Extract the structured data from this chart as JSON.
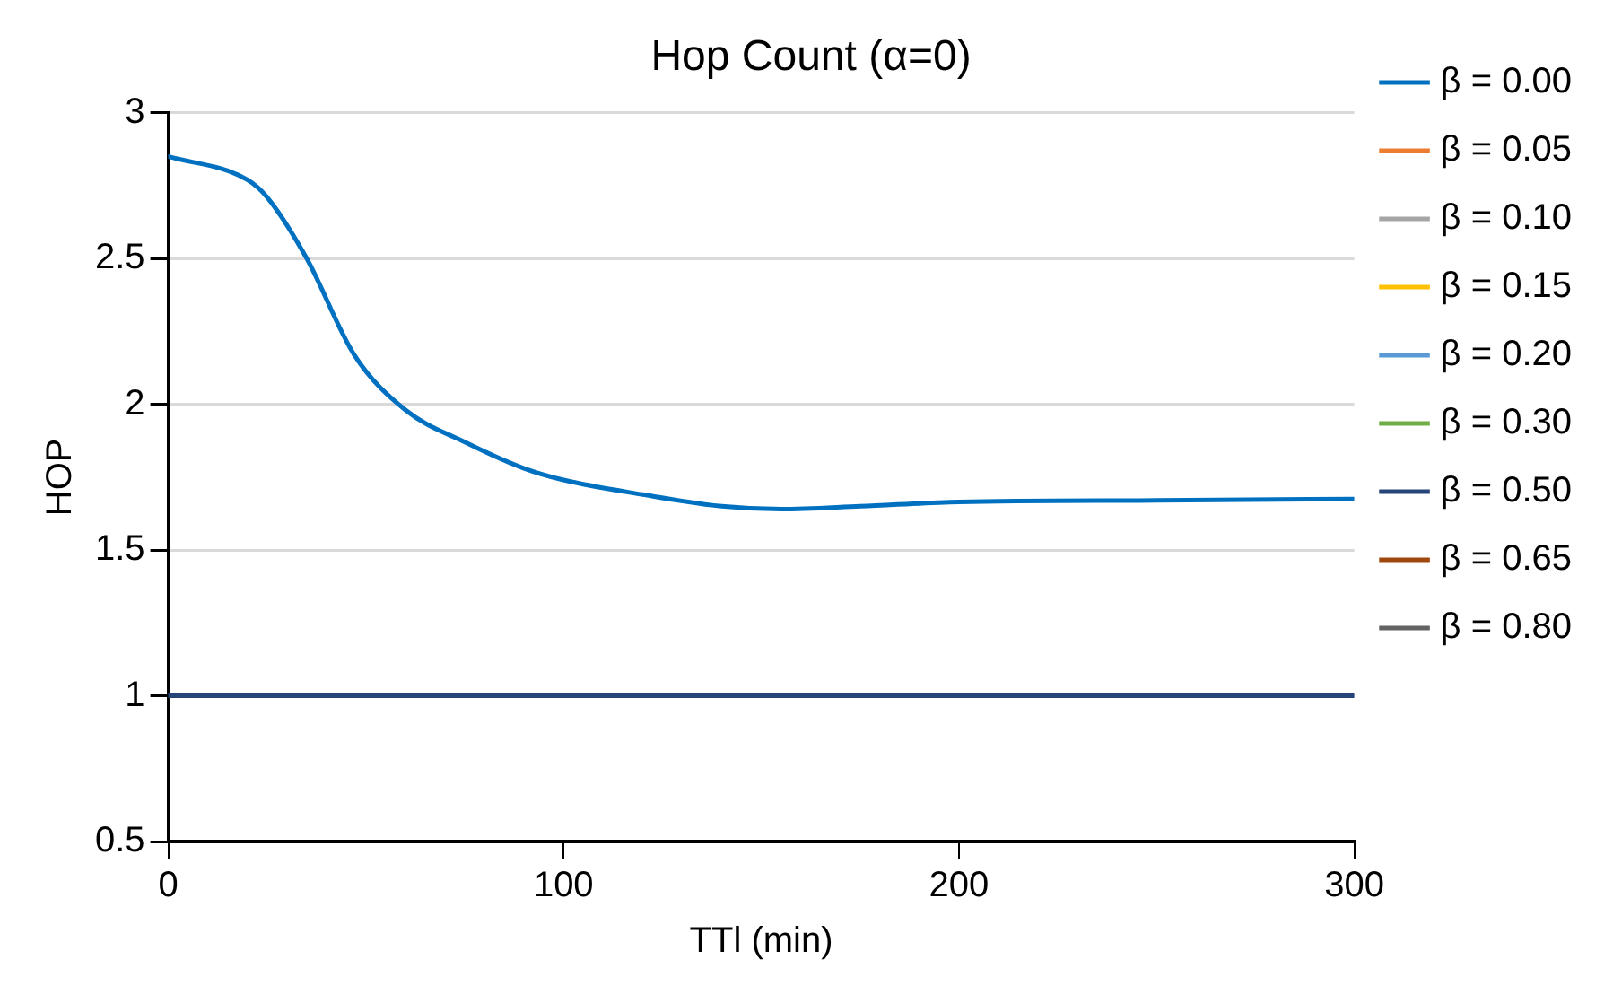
{
  "chart_data": {
    "type": "line",
    "title": "Hop Count (α=0)",
    "xlabel": "TTl (min)",
    "ylabel": "HOP",
    "xlim": [
      0,
      300
    ],
    "xticks": [
      0,
      100,
      200,
      300
    ],
    "ylim": [
      0.5,
      3
    ],
    "yticks": [
      0.5,
      1,
      1.5,
      2,
      2.5,
      3
    ],
    "grid": "y",
    "legend": "right",
    "marker": "none",
    "line_style": "solid",
    "series": [
      {
        "name": "β = 0.00",
        "color": "#0070c0",
        "x": [
          0,
          20,
          25,
          35,
          47,
          60,
          75,
          90,
          100,
          120,
          140,
          155,
          175,
          200,
          250,
          300
        ],
        "values": [
          2.85,
          2.77,
          2.71,
          2.5,
          2.17,
          1.98,
          1.87,
          1.78,
          1.74,
          1.69,
          1.65,
          1.64,
          1.65,
          1.665,
          1.67,
          1.675
        ]
      },
      {
        "name": "β = 0.05",
        "color": "#ed7d31"
      },
      {
        "name": "β = 0.10",
        "color": "#a5a5a5"
      },
      {
        "name": "β = 0.15",
        "color": "#ffc000"
      },
      {
        "name": "β = 0.20",
        "color": "#5b9bd5"
      },
      {
        "name": "β = 0.30",
        "color": "#70ad47"
      },
      {
        "name": "β = 0.50",
        "color": "#264478",
        "x": [
          0,
          300
        ],
        "values": [
          1,
          1
        ]
      },
      {
        "name": "β = 0.65",
        "color": "#9e480e"
      },
      {
        "name": "β = 0.80",
        "color": "#636363"
      }
    ]
  }
}
